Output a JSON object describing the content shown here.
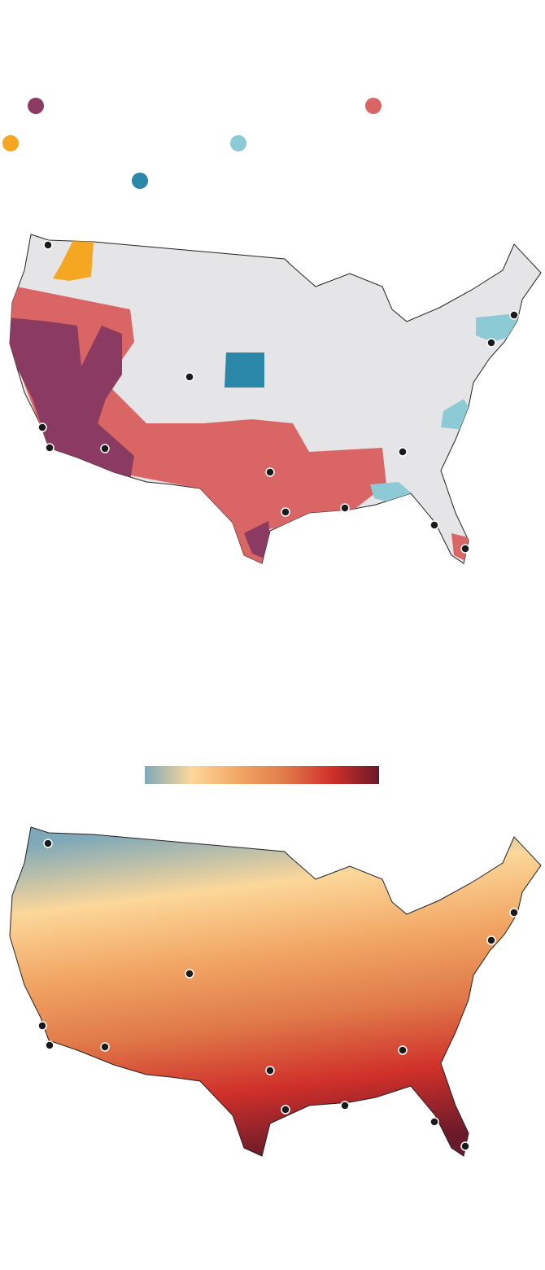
{
  "legend": {
    "colors": [
      "#8b3a62",
      "#d96565",
      "#f5a623",
      "#8ccbd6",
      "#2a87a8"
    ]
  },
  "color_scale": {
    "colors": [
      "#7fa9b8",
      "#fcd79a",
      "#f2a765",
      "#e07a4a",
      "#d0302a",
      "#6a1a2a"
    ]
  }
}
